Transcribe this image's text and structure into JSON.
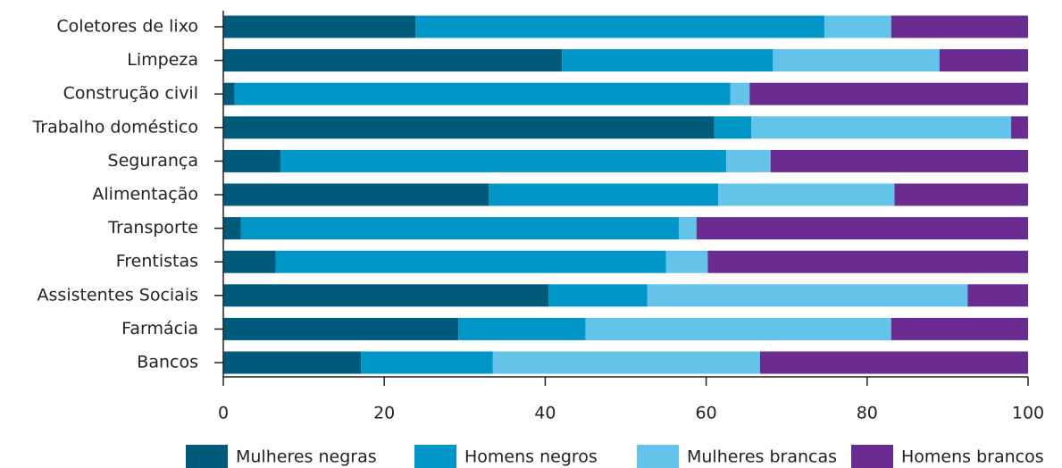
{
  "chart_data": {
    "type": "stacked_bar_horizontal",
    "categories": [
      "Coletores de lixo",
      "Limpeza",
      "Construção civil",
      "Trabalho doméstico",
      "Segurança",
      "Alimentação",
      "Transporte",
      "Frentistas",
      "Assistentes Sociais",
      "Farmácia",
      "Bancos"
    ],
    "series": [
      {
        "name": "Mulheres negras",
        "color": "#005a7a",
        "values": [
          23.9,
          42.1,
          1.4,
          61.0,
          7.1,
          33.0,
          2.2,
          6.5,
          40.4,
          29.2,
          17.1
        ]
      },
      {
        "name": "Homens negros",
        "color": "#0096c7",
        "values": [
          50.8,
          26.2,
          61.6,
          4.6,
          55.4,
          28.5,
          54.4,
          48.5,
          12.3,
          15.8,
          16.4
        ]
      },
      {
        "name": "Mulheres brancas",
        "color": "#63c3e8",
        "values": [
          8.3,
          20.7,
          2.4,
          32.3,
          5.5,
          21.9,
          2.2,
          5.2,
          39.8,
          38.0,
          33.2
        ]
      },
      {
        "name": "Homens brancos",
        "color": "#6a2c91",
        "values": [
          17.0,
          11.0,
          34.6,
          2.1,
          32.0,
          16.6,
          41.2,
          39.8,
          7.5,
          17.0,
          33.3
        ]
      }
    ],
    "xlim": [
      0,
      100
    ],
    "xticks": [
      0,
      20,
      40,
      60,
      80,
      100
    ],
    "legend": "bottom"
  }
}
